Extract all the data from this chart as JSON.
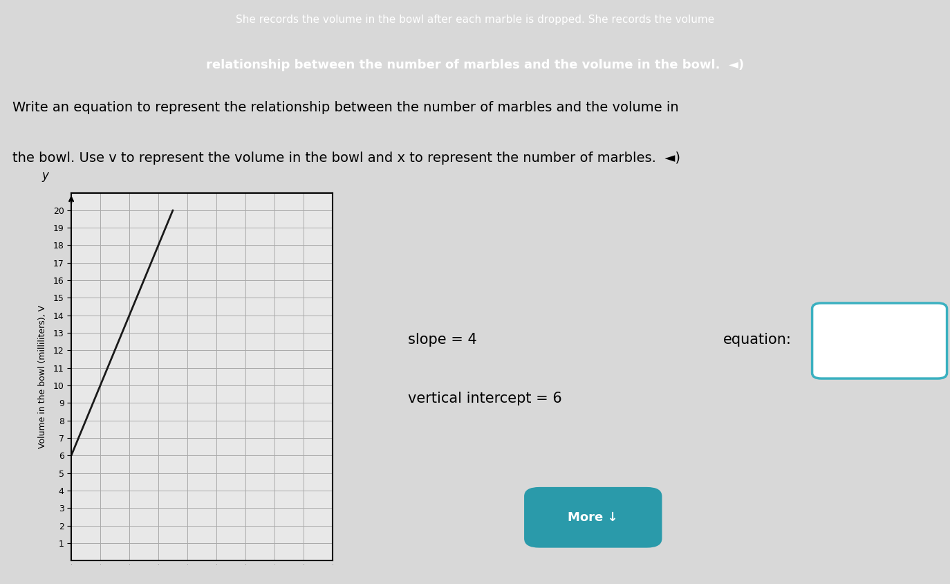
{
  "bg_color": "#d8d8d8",
  "header_color": "#5b2d8e",
  "header_line1": "She records the volume in the bowl after each marble is dropped. She records the volume",
  "header_line2": "relationship between the number of marbles and the volume in the bowl.  ◄)",
  "instr_line1": "Write an equation to represent the relationship between the number of marbles and the volume in",
  "instr_line2": "the bowl. Use v to represent the volume in the bowl and x to represent the number of marbles.  ◄)",
  "y_axis_letter": "y",
  "ylabel": "Volume in the bowl (milliliters), V",
  "yticks": [
    1,
    2,
    3,
    4,
    5,
    6,
    7,
    8,
    9,
    10,
    11,
    12,
    13,
    14,
    15,
    16,
    17,
    18,
    19,
    20
  ],
  "ylim": [
    0,
    21
  ],
  "xlim": [
    0,
    9
  ],
  "slope": 4,
  "intercept": 6,
  "line_x_start": 0,
  "line_x_end": 3.5,
  "slope_label": "slope = 4",
  "intercept_label": "vertical intercept = 6",
  "equation_label": "equation:",
  "more_button_text": "More ↓",
  "line_color": "#1a1a1a",
  "grid_color": "#aaaaaa",
  "graph_bg": "#e8e8e8",
  "text_color": "#000000",
  "box_edge_color": "#3ab0c0",
  "more_button_color": "#2a9aaa",
  "header_text1_size": 11,
  "header_text2_size": 13,
  "instr_text_size": 14
}
